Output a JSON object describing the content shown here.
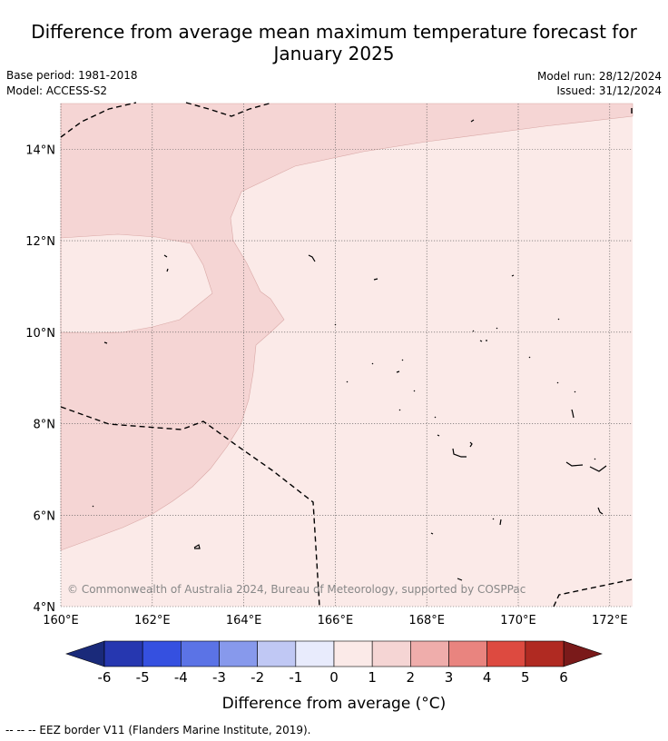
{
  "title_line1": "Difference from average mean maximum temperature forecast for",
  "title_line2": "January 2025",
  "base_period": "Base period: 1981-2018",
  "model": "Model: ACCESS-S2",
  "model_run": "Model run: 28/12/2024",
  "issued": "Issued: 31/12/2024",
  "copyright": "© Commonwealth of Australia 2024, Bureau of Meteorology, supported by COSPPac",
  "footer_note": "-- -- -- EEZ border V11 (Flanders Marine Institute, 2019).",
  "map": {
    "lon_range": [
      160,
      172.5
    ],
    "lat_range": [
      4,
      15
    ],
    "lon_ticks": [
      {
        "v": 160,
        "label": "160°E"
      },
      {
        "v": 162,
        "label": "162°E"
      },
      {
        "v": 164,
        "label": "164°E"
      },
      {
        "v": 166,
        "label": "166°E"
      },
      {
        "v": 168,
        "label": "168°E"
      },
      {
        "v": 170,
        "label": "170°E"
      },
      {
        "v": 172,
        "label": "172°E"
      }
    ],
    "lat_ticks": [
      {
        "v": 4,
        "label": "4°N"
      },
      {
        "v": 6,
        "label": "6°N"
      },
      {
        "v": 8,
        "label": "8°N"
      },
      {
        "v": 10,
        "label": "10°N"
      },
      {
        "v": 12,
        "label": "12°N"
      },
      {
        "v": 14,
        "label": "14°N"
      }
    ],
    "zones": [
      {
        "name": "anomaly-0-to-1",
        "color": "#fbeae8"
      },
      {
        "name": "anomaly-1-to-2",
        "color": "#f5d5d4"
      }
    ]
  },
  "colorbar": {
    "label": "Difference from average (°C)",
    "ticks": [
      "-6",
      "-5",
      "-4",
      "-3",
      "-2",
      "-1",
      "0",
      "1",
      "2",
      "3",
      "4",
      "5",
      "6"
    ],
    "under_color": "#1a2a7a",
    "over_color": "#7a1a1a",
    "colors": [
      "#2637b0",
      "#3550e0",
      "#5b73e6",
      "#8799ec",
      "#c0c8f4",
      "#e8ebfc",
      "#fbeae8",
      "#f5d5d4",
      "#efadab",
      "#e9847f",
      "#dd4a40",
      "#b02a22"
    ]
  }
}
